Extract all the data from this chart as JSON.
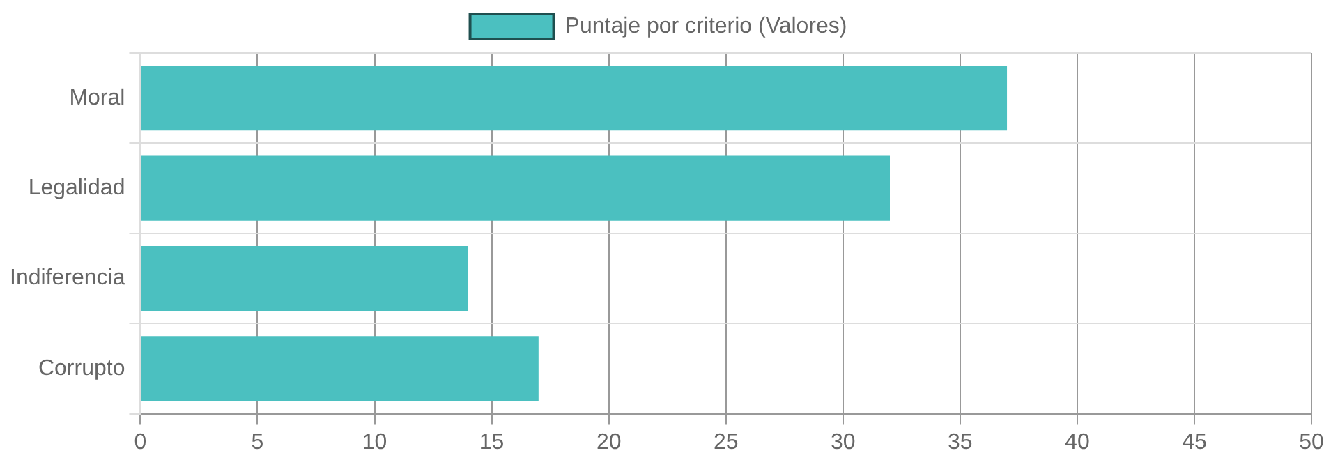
{
  "chart_data": {
    "type": "bar",
    "orientation": "horizontal",
    "categories": [
      "Moral",
      "Legalidad",
      "Indiferencia",
      "Corrupto"
    ],
    "series": [
      {
        "name": "Puntaje por criterio (Valores)",
        "color": "#4bc0c0",
        "values": [
          37,
          32,
          14,
          17
        ]
      }
    ],
    "xlim": [
      0,
      50
    ],
    "xticks": [
      0,
      5,
      10,
      15,
      20,
      25,
      30,
      35,
      40,
      45,
      50
    ],
    "grid": true,
    "legend": "top"
  }
}
